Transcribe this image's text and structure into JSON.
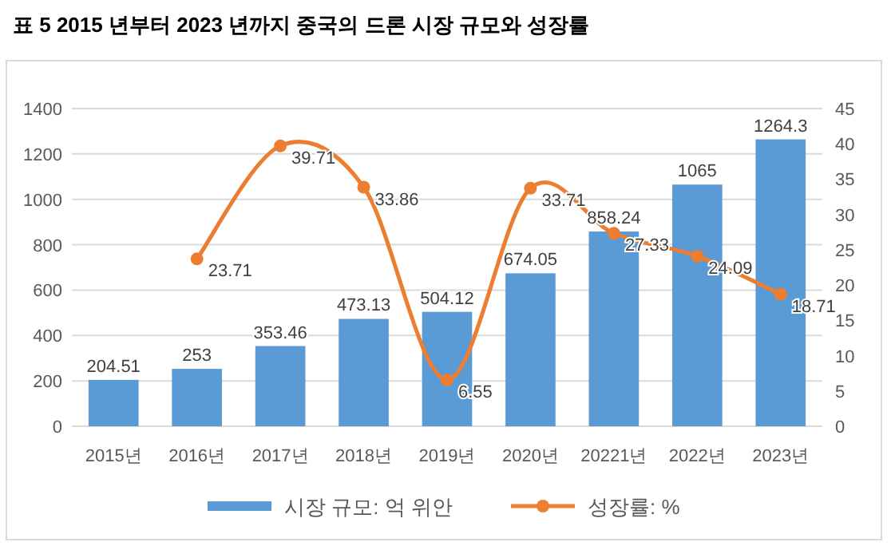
{
  "chart_data": {
    "type": "bar",
    "title": "표 5 2015 년부터 2023 년까지 중국의 드론 시장 규모와 성장률",
    "categories": [
      "2015년",
      "2016년",
      "2017년",
      "2018년",
      "2019년",
      "2020년",
      "20221년",
      "2022년",
      "2023년"
    ],
    "series": [
      {
        "name": "시장 규모: 억 위안",
        "color": "#5b9bd5",
        "values": [
          204.51,
          253,
          353.46,
          473.13,
          504.12,
          674.05,
          858.24,
          1065,
          1264.3
        ]
      },
      {
        "name": "성장률: %",
        "type": "line",
        "axis": "y2",
        "color": "#ed7d31",
        "values": [
          null,
          23.71,
          39.71,
          33.86,
          6.55,
          33.71,
          27.33,
          24.09,
          18.71
        ]
      }
    ],
    "ylim": [
      0,
      1400
    ],
    "yticks": [
      0,
      200,
      400,
      600,
      800,
      1000,
      1200,
      1400
    ],
    "y2lim": [
      0,
      45
    ],
    "y2ticks": [
      0,
      5,
      10,
      15,
      20,
      25,
      30,
      35,
      40,
      45
    ],
    "grid": "y",
    "legend": "bottom",
    "marker": "circle",
    "data_labels": true
  }
}
